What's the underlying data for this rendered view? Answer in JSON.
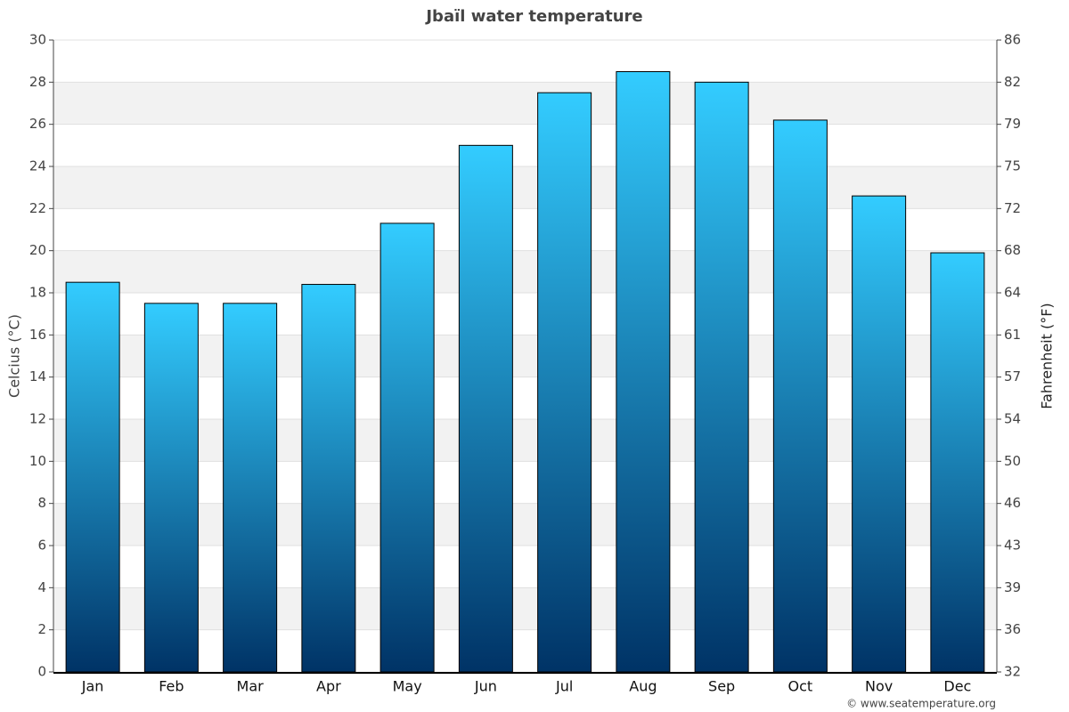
{
  "chart_data": {
    "type": "bar",
    "title": "Jbaïl water temperature",
    "categories": [
      "Jan",
      "Feb",
      "Mar",
      "Apr",
      "May",
      "Jun",
      "Jul",
      "Aug",
      "Sep",
      "Oct",
      "Nov",
      "Dec"
    ],
    "values": [
      18.5,
      17.5,
      17.5,
      18.4,
      21.3,
      25,
      27.5,
      28.5,
      28,
      26.2,
      22.6,
      19.9
    ],
    "gradient": [
      "#33ccff",
      "#003366"
    ],
    "ylabel": "Celcius (°C)",
    "y2label": "Fahrenheit (°F)",
    "ylim": [
      0,
      30
    ],
    "yticks": [
      0,
      2,
      4,
      6,
      8,
      10,
      12,
      14,
      16,
      18,
      20,
      22,
      24,
      26,
      28,
      30
    ],
    "y2lim": [
      32,
      86
    ],
    "y2ticks": [
      32,
      {
        "value": 35.6,
        "label": "36"
      },
      {
        "value": 39.2,
        "label": "39"
      },
      {
        "value": 42.8,
        "label": "43"
      },
      {
        "value": 46.4,
        "label": "46"
      },
      50,
      {
        "value": 53.6,
        "label": "54"
      },
      {
        "value": 57.2,
        "label": "57"
      },
      {
        "value": 60.8,
        "label": "61"
      },
      {
        "value": 64.4,
        "label": "64"
      },
      68,
      {
        "value": 71.6,
        "label": "72"
      },
      {
        "value": 75.2,
        "label": "75"
      },
      {
        "value": 78.8,
        "label": "79"
      },
      {
        "value": 82.4,
        "label": "82"
      },
      86
    ],
    "grid": true,
    "credit": "© www.seatemperature.org"
  }
}
